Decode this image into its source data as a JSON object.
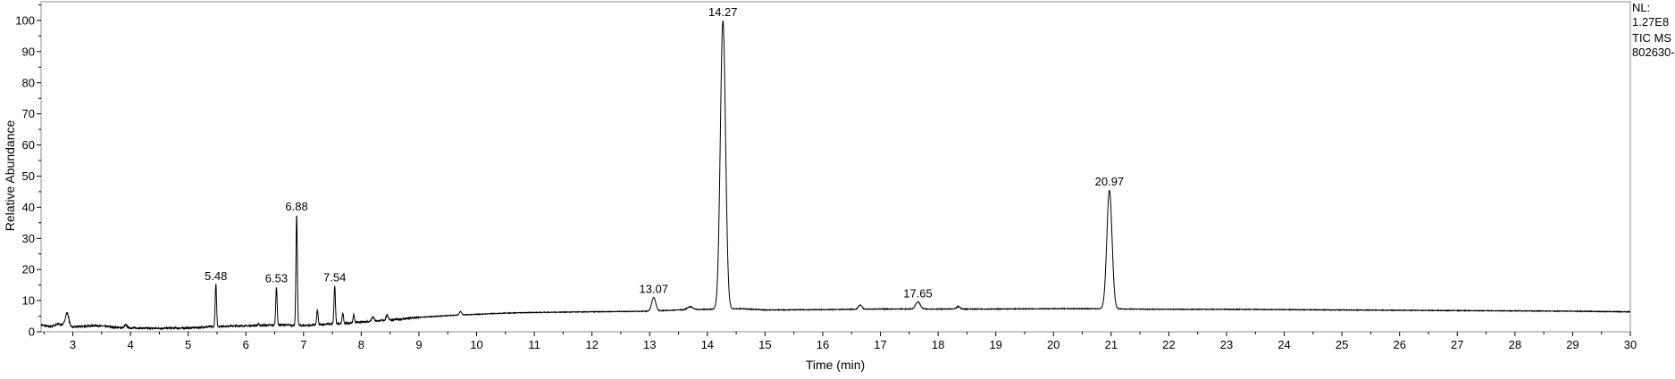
{
  "header": {
    "nl_label": "NL:",
    "nl_value": "1.27E8",
    "scan_label": "TIC  MS",
    "file_label": "802630-"
  },
  "chart_data": {
    "type": "line",
    "xlabel": "Time (min)",
    "ylabel": "Relative Abundance",
    "xlim": [
      2.45,
      30
    ],
    "ylim": [
      0,
      106
    ],
    "x_ticks": [
      3,
      4,
      5,
      6,
      7,
      8,
      9,
      10,
      11,
      12,
      13,
      14,
      15,
      16,
      17,
      18,
      19,
      20,
      21,
      22,
      23,
      24,
      25,
      26,
      27,
      28,
      29,
      30
    ],
    "y_ticks": [
      0,
      10,
      20,
      30,
      40,
      50,
      60,
      70,
      80,
      90,
      100
    ],
    "grid": false,
    "baseline_points": [
      [
        2.45,
        2.2
      ],
      [
        2.6,
        1.6
      ],
      [
        2.75,
        2.5
      ],
      [
        3.0,
        1.5
      ],
      [
        3.4,
        2.0
      ],
      [
        3.8,
        1.3
      ],
      [
        4.3,
        1.1
      ],
      [
        5.0,
        1.2
      ],
      [
        5.4,
        1.6
      ],
      [
        5.7,
        1.8
      ],
      [
        6.2,
        2.0
      ],
      [
        6.6,
        2.2
      ],
      [
        7.0,
        2.0
      ],
      [
        7.4,
        2.4
      ],
      [
        7.8,
        2.8
      ],
      [
        8.2,
        3.4
      ],
      [
        8.6,
        3.9
      ],
      [
        9.0,
        4.6
      ],
      [
        9.5,
        5.2
      ],
      [
        10.0,
        5.6
      ],
      [
        10.5,
        6.0
      ],
      [
        11.0,
        6.2
      ],
      [
        12.0,
        6.4
      ],
      [
        13.0,
        6.6
      ],
      [
        13.5,
        7.0
      ],
      [
        14.0,
        7.2
      ],
      [
        14.6,
        7.4
      ],
      [
        15.0,
        7.0
      ],
      [
        16.0,
        7.1
      ],
      [
        17.0,
        7.3
      ],
      [
        18.0,
        7.3
      ],
      [
        19.0,
        7.3
      ],
      [
        20.0,
        7.4
      ],
      [
        20.7,
        7.4
      ],
      [
        21.2,
        7.3
      ],
      [
        22.0,
        7.2
      ],
      [
        23.0,
        7.2
      ],
      [
        24.0,
        7.1
      ],
      [
        25.0,
        7.0
      ],
      [
        26.0,
        6.9
      ],
      [
        27.0,
        6.8
      ],
      [
        28.0,
        6.7
      ],
      [
        29.0,
        6.6
      ],
      [
        30.0,
        6.4
      ]
    ],
    "peaks": [
      {
        "rt": 2.9,
        "height": 6.0,
        "width": 0.03
      },
      {
        "rt": 3.92,
        "height": 2.2,
        "width": 0.02
      },
      {
        "rt": 5.48,
        "height": 15.2,
        "width": 0.012,
        "label": "5.48"
      },
      {
        "rt": 5.72,
        "height": 2.0,
        "width": 0.015
      },
      {
        "rt": 6.22,
        "height": 2.5,
        "width": 0.012
      },
      {
        "rt": 6.53,
        "height": 14.5,
        "width": 0.012,
        "label": "6.53"
      },
      {
        "rt": 6.88,
        "height": 37.5,
        "width": 0.012,
        "label": "6.88"
      },
      {
        "rt": 7.24,
        "height": 7.0,
        "width": 0.012
      },
      {
        "rt": 7.54,
        "height": 14.8,
        "width": 0.012,
        "label": "7.54"
      },
      {
        "rt": 7.68,
        "height": 6.0,
        "width": 0.012
      },
      {
        "rt": 7.87,
        "height": 5.5,
        "width": 0.012
      },
      {
        "rt": 8.2,
        "height": 4.8,
        "width": 0.02
      },
      {
        "rt": 8.45,
        "height": 5.3,
        "width": 0.02
      },
      {
        "rt": 9.72,
        "height": 6.5,
        "width": 0.02
      },
      {
        "rt": 13.07,
        "height": 11.0,
        "width": 0.035,
        "label": "13.07"
      },
      {
        "rt": 13.7,
        "height": 8.0,
        "width": 0.05
      },
      {
        "rt": 14.27,
        "height": 100.0,
        "width": 0.045,
        "label": "14.27"
      },
      {
        "rt": 16.65,
        "height": 8.6,
        "width": 0.03
      },
      {
        "rt": 17.65,
        "height": 9.6,
        "width": 0.04,
        "label": "17.65"
      },
      {
        "rt": 18.35,
        "height": 8.1,
        "width": 0.03
      },
      {
        "rt": 20.97,
        "height": 45.5,
        "width": 0.045,
        "label": "20.97"
      }
    ]
  }
}
